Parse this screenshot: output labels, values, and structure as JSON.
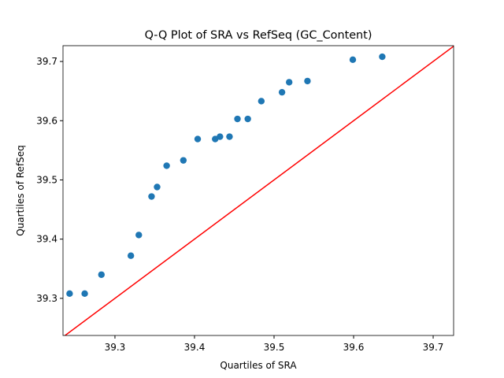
{
  "chart_data": {
    "type": "scatter",
    "title": "Q-Q Plot of SRA vs RefSeq (GC_Content)",
    "x_label": "Quartiles of SRA",
    "y_label": "Quartiles of RefSeq",
    "x": [
      39.243,
      39.262,
      39.283,
      39.32,
      39.33,
      39.346,
      39.353,
      39.365,
      39.386,
      39.404,
      39.426,
      39.432,
      39.444,
      39.454,
      39.467,
      39.484,
      39.51,
      39.519,
      39.542,
      39.599,
      39.636
    ],
    "values": [
      39.308,
      39.308,
      39.34,
      39.372,
      39.407,
      39.472,
      39.488,
      39.524,
      39.533,
      39.569,
      39.569,
      39.573,
      39.573,
      39.603,
      39.603,
      39.633,
      39.648,
      39.665,
      39.667,
      39.703,
      39.708
    ],
    "color": "#1f77b4",
    "reference_line_color": "#ff0000",
    "xlim": [
      39.2347,
      39.7257
    ],
    "ylim": [
      39.2373,
      39.7267
    ],
    "xticks": [
      39.3,
      39.4,
      39.5,
      39.6,
      39.7
    ],
    "yticks": [
      39.3,
      39.4,
      39.5,
      39.6,
      39.7
    ],
    "grid": false
  }
}
